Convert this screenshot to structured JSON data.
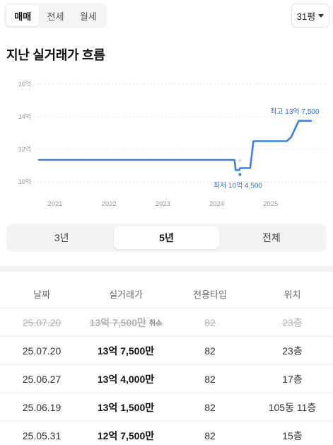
{
  "deal_tabs": [
    {
      "label": "매매",
      "active": true
    },
    {
      "label": "전세",
      "active": false
    },
    {
      "label": "월세",
      "active": false
    }
  ],
  "area_select": {
    "value": "31평"
  },
  "title": "지난 실거래가 흐름",
  "chart_data": {
    "type": "line",
    "title": "",
    "xlabel": "",
    "ylabel": "",
    "x_ticks": [
      "2021",
      "2022",
      "2023",
      "2024",
      "2025"
    ],
    "y_ticks": [
      "10억",
      "12억",
      "14억",
      "16억"
    ],
    "ylim": [
      10,
      16
    ],
    "xlim": [
      2020.7,
      2025.75
    ],
    "grid": "horizontal dotted",
    "color": "#3b82e0",
    "series": [
      {
        "points": [
          {
            "x": 2020.7,
            "y": 11.35
          },
          {
            "x": 2024.33,
            "y": 11.35
          },
          {
            "x": 2024.35,
            "y": 10.72
          },
          {
            "x": 2024.42,
            "y": 10.72
          },
          {
            "x": 2024.43,
            "y": 10.85
          },
          {
            "x": 2024.62,
            "y": 10.85
          },
          {
            "x": 2024.68,
            "y": 12.5
          },
          {
            "x": 2025.3,
            "y": 12.5
          },
          {
            "x": 2025.38,
            "y": 12.75
          },
          {
            "x": 2025.52,
            "y": 13.75
          },
          {
            "x": 2025.75,
            "y": 13.75
          }
        ]
      }
    ],
    "scatter_points": [
      {
        "x": 2024.43,
        "y": 10.45,
        "color": "#3b82e0"
      },
      {
        "x": 2024.43,
        "y": 11.3,
        "color": "#c7daf6"
      }
    ],
    "annotations": {
      "min": {
        "label": "최저 10억 4,500",
        "x": 2024.43,
        "y": 10.45
      },
      "max": {
        "label": "최고 13억 7,500",
        "x": 2025.55,
        "y": 13.75
      }
    }
  },
  "range_tabs": [
    {
      "label": "3년",
      "active": false
    },
    {
      "label": "5년",
      "active": true
    },
    {
      "label": "전체",
      "active": false
    }
  ],
  "table": {
    "headers": {
      "date": "날짜",
      "price": "실거래가",
      "type": "전용타입",
      "floor": "위치"
    },
    "rows": [
      {
        "date": "25.07.20",
        "price": "13억 7,500만",
        "tag": "취소",
        "type": "82",
        "floor": "23층",
        "cancelled": true
      },
      {
        "date": "25.07.20",
        "price": "13억 7,500만",
        "tag": "",
        "type": "82",
        "floor": "23층",
        "cancelled": false
      },
      {
        "date": "25.06.27",
        "price": "13억 4,000만",
        "tag": "",
        "type": "82",
        "floor": "17층",
        "cancelled": false
      },
      {
        "date": "25.06.19",
        "price": "13억 1,500만",
        "tag": "",
        "type": "82",
        "floor": "105동 11층",
        "cancelled": false
      },
      {
        "date": "25.05.31",
        "price": "12억 7,500만",
        "tag": "",
        "type": "82",
        "floor": "15층",
        "cancelled": false
      }
    ]
  }
}
